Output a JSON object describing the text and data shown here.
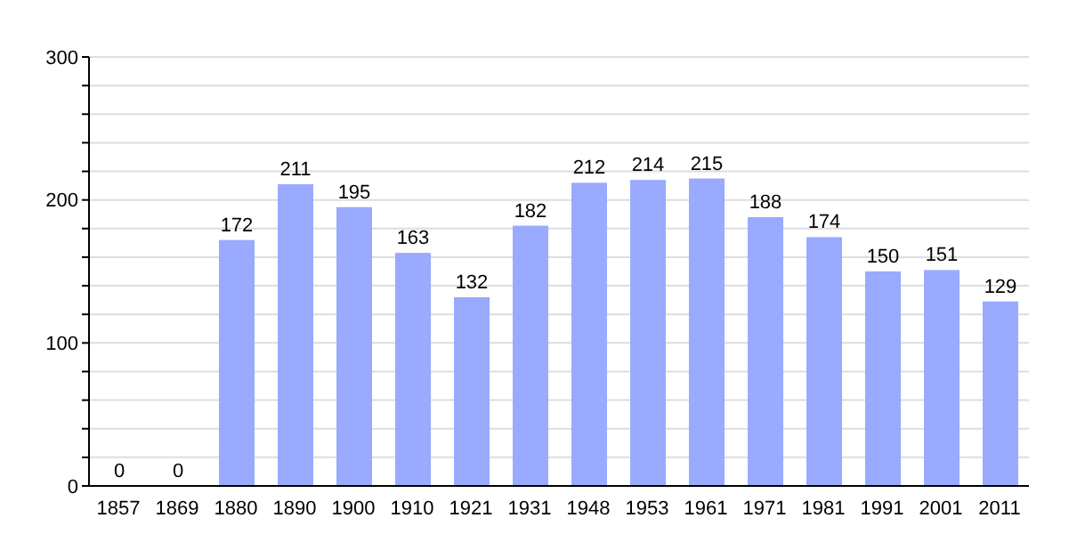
{
  "chart_data": {
    "type": "bar",
    "categories": [
      "1857",
      "1869",
      "1880",
      "1890",
      "1900",
      "1910",
      "1921",
      "1931",
      "1948",
      "1953",
      "1961",
      "1971",
      "1981",
      "1991",
      "2001",
      "2011"
    ],
    "values": [
      0,
      0,
      172,
      211,
      195,
      163,
      132,
      182,
      212,
      214,
      215,
      188,
      174,
      150,
      151,
      129
    ],
    "color": "#99aaff",
    "ylim": [
      0,
      300
    ],
    "yticks": [
      0,
      {
        "value": 20,
        "label": null
      },
      {
        "value": 40,
        "label": null
      },
      {
        "value": 60,
        "label": null
      },
      {
        "value": 80,
        "label": null
      },
      100,
      {
        "value": 120,
        "label": null
      },
      {
        "value": 140,
        "label": null
      },
      {
        "value": 160,
        "label": null
      },
      {
        "value": 180,
        "label": null
      },
      200,
      {
        "value": 220,
        "label": null
      },
      {
        "value": 240,
        "label": null
      },
      {
        "value": 260,
        "label": null
      },
      {
        "value": 280,
        "label": null
      },
      300
    ],
    "grid": "y",
    "data_labels": true
  }
}
